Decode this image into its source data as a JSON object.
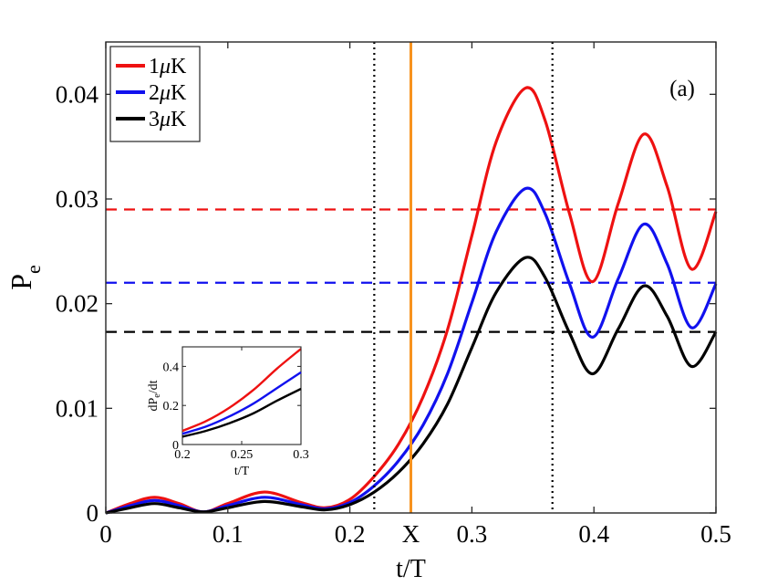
{
  "chart_data": {
    "type": "line",
    "panel_label": "(a)",
    "xlabel": "t/T",
    "ylabel_main": "P",
    "ylabel_sub": "e",
    "xlim": [
      0,
      0.5
    ],
    "ylim": [
      0,
      0.045
    ],
    "xticks": [
      0,
      0.1,
      0.2,
      0.3,
      0.4,
      0.5
    ],
    "xtick_labels": [
      "0",
      "0.1",
      "0.2",
      "0.3",
      "0.4",
      "0.5"
    ],
    "yticks": [
      0,
      0.01,
      0.02,
      0.03,
      0.04
    ],
    "ytick_labels": [
      "0",
      "0.01",
      "0.02",
      "0.03",
      "0.04"
    ],
    "x_marker": {
      "x": 0.25,
      "label": "X",
      "color": "#f7921e"
    },
    "dotted_vlines": [
      0.22,
      0.366
    ],
    "legend": {
      "placement": "top-left",
      "entries": [
        {
          "num": "1",
          "mu": "μ",
          "unit": "K"
        },
        {
          "num": "2",
          "mu": "μ",
          "unit": "K"
        },
        {
          "num": "3",
          "mu": "μ",
          "unit": "K"
        }
      ]
    },
    "series": [
      {
        "name": "1μK",
        "color": "#ee1111",
        "hline": 0.029,
        "x": [
          0,
          0.02,
          0.04,
          0.06,
          0.08,
          0.1,
          0.13,
          0.16,
          0.18,
          0.2,
          0.22,
          0.24,
          0.26,
          0.28,
          0.3,
          0.32,
          0.344,
          0.36,
          0.38,
          0.399,
          0.42,
          0.441,
          0.46,
          0.48,
          0.5
        ],
        "values": [
          0,
          0.0009,
          0.0015,
          0.0009,
          0.0001,
          0.0009,
          0.002,
          0.001,
          0.0005,
          0.0013,
          0.0035,
          0.0066,
          0.0111,
          0.0175,
          0.0265,
          0.0355,
          0.0406,
          0.0375,
          0.0286,
          0.0221,
          0.0296,
          0.0362,
          0.0312,
          0.0233,
          0.0288
        ]
      },
      {
        "name": "2μK",
        "color": "#1111ee",
        "hline": 0.022,
        "x": [
          0,
          0.02,
          0.04,
          0.06,
          0.08,
          0.1,
          0.13,
          0.16,
          0.18,
          0.2,
          0.22,
          0.24,
          0.26,
          0.28,
          0.3,
          0.32,
          0.344,
          0.36,
          0.38,
          0.399,
          0.42,
          0.441,
          0.46,
          0.48,
          0.5
        ],
        "values": [
          0,
          0.0007,
          0.0012,
          0.0007,
          0.0001,
          0.0007,
          0.0015,
          0.0008,
          0.0004,
          0.001,
          0.0026,
          0.005,
          0.0084,
          0.0133,
          0.0201,
          0.0269,
          0.031,
          0.0286,
          0.0219,
          0.0168,
          0.0224,
          0.0276,
          0.0238,
          0.0177,
          0.0219
        ]
      },
      {
        "name": "3μK",
        "color": "#000000",
        "hline": 0.0173,
        "x": [
          0,
          0.02,
          0.04,
          0.06,
          0.08,
          0.1,
          0.13,
          0.16,
          0.18,
          0.2,
          0.22,
          0.24,
          0.26,
          0.28,
          0.3,
          0.32,
          0.344,
          0.36,
          0.38,
          0.399,
          0.42,
          0.441,
          0.46,
          0.48,
          0.5
        ],
        "values": [
          0,
          0.0005,
          0.0009,
          0.0005,
          0.0001,
          0.0005,
          0.0011,
          0.0006,
          0.0003,
          0.0008,
          0.002,
          0.0039,
          0.0066,
          0.0104,
          0.0158,
          0.0211,
          0.0244,
          0.0225,
          0.0172,
          0.0133,
          0.0176,
          0.0217,
          0.0188,
          0.014,
          0.0173
        ]
      }
    ],
    "inset": {
      "ylabel_main": "dP",
      "ylabel_sub": "e",
      "ylabel_tail": "/dt",
      "xlabel": "t/T",
      "xlim": [
        0.2,
        0.3
      ],
      "ylim": [
        0,
        0.5
      ],
      "xticks": [
        0.2,
        0.25,
        0.3
      ],
      "xtick_labels": [
        "0.2",
        "0.25",
        "0.3"
      ],
      "yticks": [
        0,
        0.2,
        0.4
      ],
      "ytick_labels": [
        "0",
        "0.2",
        "0.4"
      ],
      "series": [
        {
          "name": "1μK",
          "color": "#ee1111",
          "x": [
            0.2,
            0.22,
            0.24,
            0.26,
            0.28,
            0.3
          ],
          "values": [
            0.07,
            0.12,
            0.19,
            0.28,
            0.39,
            0.49
          ]
        },
        {
          "name": "2μK",
          "color": "#1111ee",
          "x": [
            0.2,
            0.22,
            0.24,
            0.26,
            0.28,
            0.3
          ],
          "values": [
            0.055,
            0.092,
            0.145,
            0.21,
            0.29,
            0.37
          ]
        },
        {
          "name": "3μK",
          "color": "#000000",
          "x": [
            0.2,
            0.22,
            0.24,
            0.26,
            0.28,
            0.3
          ],
          "values": [
            0.04,
            0.07,
            0.11,
            0.16,
            0.225,
            0.285
          ]
        }
      ]
    }
  }
}
